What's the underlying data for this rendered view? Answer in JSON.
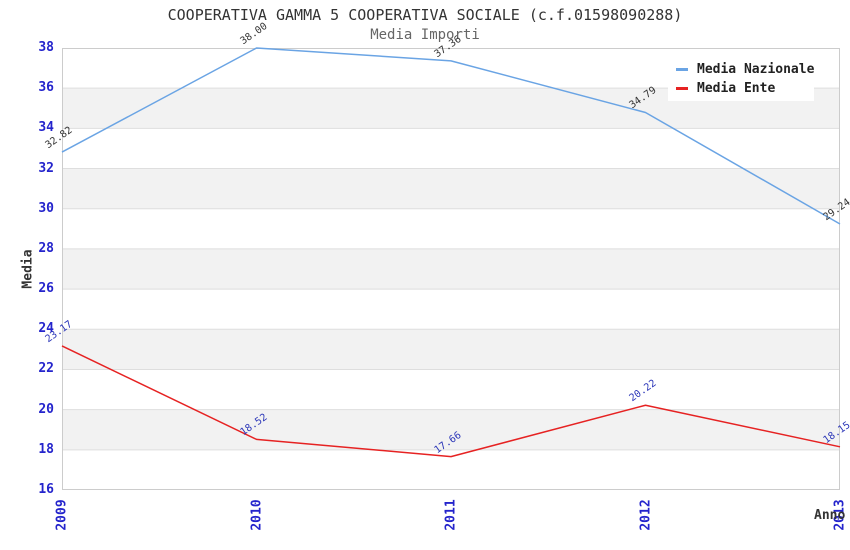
{
  "title": "COOPERATIVA GAMMA 5 COOPERATIVA SOCIALE (c.f.01598090288)",
  "subtitle": "Media Importi",
  "axes": {
    "x_title": "Anno",
    "y_title": "Media"
  },
  "colors": {
    "tick_label": "#2424cc",
    "band_gray": "#f2f2f2",
    "band_white": "#ffffff",
    "grid_line": "#dedede",
    "plot_border": "#cccccc",
    "title_text": "#333333",
    "subtitle_text": "#666666"
  },
  "chart_data": {
    "type": "line",
    "x": [
      "2009",
      "2010",
      "2011",
      "2012",
      "2013"
    ],
    "series": [
      {
        "name": "Media Nazionale",
        "color": "#6aa4e4",
        "label_color": "#333333",
        "values": [
          32.82,
          38.0,
          37.36,
          34.79,
          29.24
        ]
      },
      {
        "name": "Media Ente",
        "color": "#e62222",
        "label_color": "#2a35b8",
        "values": [
          23.17,
          18.52,
          17.66,
          20.22,
          18.15
        ]
      }
    ],
    "title": "COOPERATIVA GAMMA 5 COOPERATIVA SOCIALE (c.f.01598090288)",
    "subtitle": "Media Importi",
    "xlabel": "Anno",
    "ylabel": "Media",
    "ylim": [
      16,
      38
    ],
    "y_ticks": [
      16,
      18,
      20,
      22,
      24,
      26,
      28,
      30,
      32,
      34,
      36,
      38
    ],
    "grid": "horizontal-alternating-bands",
    "legend_position": "top-right",
    "data_label_decimals": 2
  }
}
